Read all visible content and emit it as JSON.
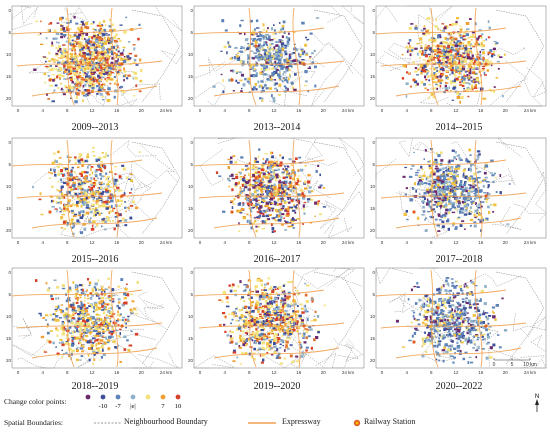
{
  "panels": [
    {
      "label": "2009--2013",
      "dominant": "warm",
      "density": 1.0
    },
    {
      "label": "2013--2014",
      "dominant": "cool",
      "density": 0.55
    },
    {
      "label": "2014--2015",
      "dominant": "warm",
      "density": 0.8
    },
    {
      "label": "2015--2016",
      "dominant": "mixed_warm",
      "density": 0.6
    },
    {
      "label": "2016--2017",
      "dominant": "mixed",
      "density": 0.75
    },
    {
      "label": "2017--2018",
      "dominant": "cool",
      "density": 0.7
    },
    {
      "label": "2018--2019",
      "dominant": "mixed_warm",
      "density": 0.7
    },
    {
      "label": "2019--2020",
      "dominant": "warm",
      "density": 0.8
    },
    {
      "label": "2020--2022",
      "dominant": "cool",
      "density": 0.65
    }
  ],
  "x_ticks": [
    "0",
    "4",
    "8",
    "12",
    "16",
    "20",
    "24 km"
  ],
  "y_ticks": [
    "0",
    "5",
    "10",
    "15",
    "20"
  ],
  "legend": {
    "change_title": "Change color points:",
    "change_values": [
      "-10",
      "-7",
      "|e|",
      "7",
      "10"
    ],
    "change_colors": [
      "#6b2a6e",
      "#3d4f9a",
      "#5c82b8",
      "#8fb0c8",
      "#f2e07a",
      "#f0a030",
      "#d8402a"
    ],
    "boundaries_title": "Spatial Boundaries:",
    "neighbourhood_label": "Neighbourhood Boundary",
    "expressway_label": "Expressway",
    "railway_label": "Railway Station",
    "expressway_color": "#f0a050",
    "railway_color": "#e06020"
  },
  "scale_bar": {
    "labels": [
      "0",
      "5",
      "10 km"
    ]
  },
  "north_label": "N"
}
